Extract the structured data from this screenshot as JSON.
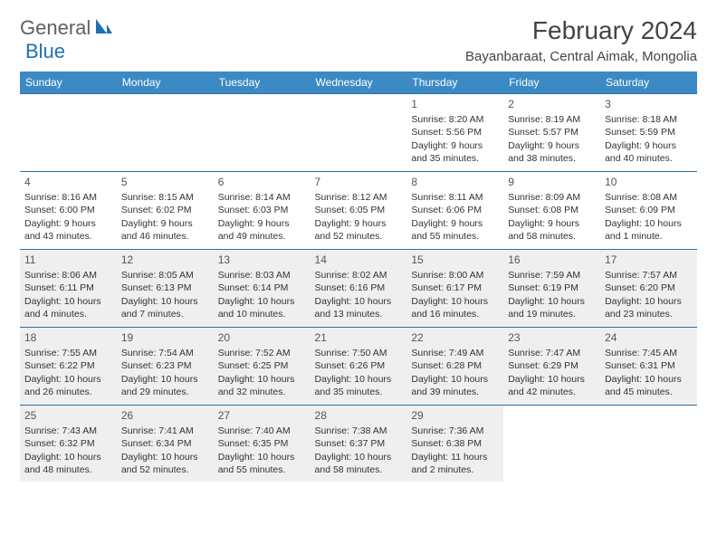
{
  "logo": {
    "text1": "General",
    "text2": "Blue"
  },
  "title": "February 2024",
  "location": "Bayanbaraat, Central Aimak, Mongolia",
  "colors": {
    "header_bg": "#3b8ac4",
    "header_text": "#ffffff",
    "row_border": "#2f6fa8",
    "shaded_bg": "#efefef",
    "body_text": "#333333",
    "logo_gray": "#606060",
    "logo_blue": "#1f6fb2"
  },
  "day_headers": [
    "Sunday",
    "Monday",
    "Tuesday",
    "Wednesday",
    "Thursday",
    "Friday",
    "Saturday"
  ],
  "weeks": [
    [
      {
        "n": "",
        "sr": "",
        "ss": "",
        "dl": ""
      },
      {
        "n": "",
        "sr": "",
        "ss": "",
        "dl": ""
      },
      {
        "n": "",
        "sr": "",
        "ss": "",
        "dl": ""
      },
      {
        "n": "",
        "sr": "",
        "ss": "",
        "dl": ""
      },
      {
        "n": "1",
        "sr": "Sunrise: 8:20 AM",
        "ss": "Sunset: 5:56 PM",
        "dl": "Daylight: 9 hours and 35 minutes."
      },
      {
        "n": "2",
        "sr": "Sunrise: 8:19 AM",
        "ss": "Sunset: 5:57 PM",
        "dl": "Daylight: 9 hours and 38 minutes."
      },
      {
        "n": "3",
        "sr": "Sunrise: 8:18 AM",
        "ss": "Sunset: 5:59 PM",
        "dl": "Daylight: 9 hours and 40 minutes."
      }
    ],
    [
      {
        "n": "4",
        "sr": "Sunrise: 8:16 AM",
        "ss": "Sunset: 6:00 PM",
        "dl": "Daylight: 9 hours and 43 minutes."
      },
      {
        "n": "5",
        "sr": "Sunrise: 8:15 AM",
        "ss": "Sunset: 6:02 PM",
        "dl": "Daylight: 9 hours and 46 minutes."
      },
      {
        "n": "6",
        "sr": "Sunrise: 8:14 AM",
        "ss": "Sunset: 6:03 PM",
        "dl": "Daylight: 9 hours and 49 minutes."
      },
      {
        "n": "7",
        "sr": "Sunrise: 8:12 AM",
        "ss": "Sunset: 6:05 PM",
        "dl": "Daylight: 9 hours and 52 minutes."
      },
      {
        "n": "8",
        "sr": "Sunrise: 8:11 AM",
        "ss": "Sunset: 6:06 PM",
        "dl": "Daylight: 9 hours and 55 minutes."
      },
      {
        "n": "9",
        "sr": "Sunrise: 8:09 AM",
        "ss": "Sunset: 6:08 PM",
        "dl": "Daylight: 9 hours and 58 minutes."
      },
      {
        "n": "10",
        "sr": "Sunrise: 8:08 AM",
        "ss": "Sunset: 6:09 PM",
        "dl": "Daylight: 10 hours and 1 minute."
      }
    ],
    [
      {
        "n": "11",
        "sr": "Sunrise: 8:06 AM",
        "ss": "Sunset: 6:11 PM",
        "dl": "Daylight: 10 hours and 4 minutes.",
        "sh": true
      },
      {
        "n": "12",
        "sr": "Sunrise: 8:05 AM",
        "ss": "Sunset: 6:13 PM",
        "dl": "Daylight: 10 hours and 7 minutes.",
        "sh": true
      },
      {
        "n": "13",
        "sr": "Sunrise: 8:03 AM",
        "ss": "Sunset: 6:14 PM",
        "dl": "Daylight: 10 hours and 10 minutes.",
        "sh": true
      },
      {
        "n": "14",
        "sr": "Sunrise: 8:02 AM",
        "ss": "Sunset: 6:16 PM",
        "dl": "Daylight: 10 hours and 13 minutes.",
        "sh": true
      },
      {
        "n": "15",
        "sr": "Sunrise: 8:00 AM",
        "ss": "Sunset: 6:17 PM",
        "dl": "Daylight: 10 hours and 16 minutes.",
        "sh": true
      },
      {
        "n": "16",
        "sr": "Sunrise: 7:59 AM",
        "ss": "Sunset: 6:19 PM",
        "dl": "Daylight: 10 hours and 19 minutes.",
        "sh": true
      },
      {
        "n": "17",
        "sr": "Sunrise: 7:57 AM",
        "ss": "Sunset: 6:20 PM",
        "dl": "Daylight: 10 hours and 23 minutes.",
        "sh": true
      }
    ],
    [
      {
        "n": "18",
        "sr": "Sunrise: 7:55 AM",
        "ss": "Sunset: 6:22 PM",
        "dl": "Daylight: 10 hours and 26 minutes.",
        "sh": true
      },
      {
        "n": "19",
        "sr": "Sunrise: 7:54 AM",
        "ss": "Sunset: 6:23 PM",
        "dl": "Daylight: 10 hours and 29 minutes.",
        "sh": true
      },
      {
        "n": "20",
        "sr": "Sunrise: 7:52 AM",
        "ss": "Sunset: 6:25 PM",
        "dl": "Daylight: 10 hours and 32 minutes.",
        "sh": true
      },
      {
        "n": "21",
        "sr": "Sunrise: 7:50 AM",
        "ss": "Sunset: 6:26 PM",
        "dl": "Daylight: 10 hours and 35 minutes.",
        "sh": true
      },
      {
        "n": "22",
        "sr": "Sunrise: 7:49 AM",
        "ss": "Sunset: 6:28 PM",
        "dl": "Daylight: 10 hours and 39 minutes.",
        "sh": true
      },
      {
        "n": "23",
        "sr": "Sunrise: 7:47 AM",
        "ss": "Sunset: 6:29 PM",
        "dl": "Daylight: 10 hours and 42 minutes.",
        "sh": true
      },
      {
        "n": "24",
        "sr": "Sunrise: 7:45 AM",
        "ss": "Sunset: 6:31 PM",
        "dl": "Daylight: 10 hours and 45 minutes.",
        "sh": true
      }
    ],
    [
      {
        "n": "25",
        "sr": "Sunrise: 7:43 AM",
        "ss": "Sunset: 6:32 PM",
        "dl": "Daylight: 10 hours and 48 minutes.",
        "sh": true
      },
      {
        "n": "26",
        "sr": "Sunrise: 7:41 AM",
        "ss": "Sunset: 6:34 PM",
        "dl": "Daylight: 10 hours and 52 minutes.",
        "sh": true
      },
      {
        "n": "27",
        "sr": "Sunrise: 7:40 AM",
        "ss": "Sunset: 6:35 PM",
        "dl": "Daylight: 10 hours and 55 minutes.",
        "sh": true
      },
      {
        "n": "28",
        "sr": "Sunrise: 7:38 AM",
        "ss": "Sunset: 6:37 PM",
        "dl": "Daylight: 10 hours and 58 minutes.",
        "sh": true
      },
      {
        "n": "29",
        "sr": "Sunrise: 7:36 AM",
        "ss": "Sunset: 6:38 PM",
        "dl": "Daylight: 11 hours and 2 minutes.",
        "sh": true
      },
      {
        "n": "",
        "sr": "",
        "ss": "",
        "dl": ""
      },
      {
        "n": "",
        "sr": "",
        "ss": "",
        "dl": ""
      }
    ]
  ]
}
